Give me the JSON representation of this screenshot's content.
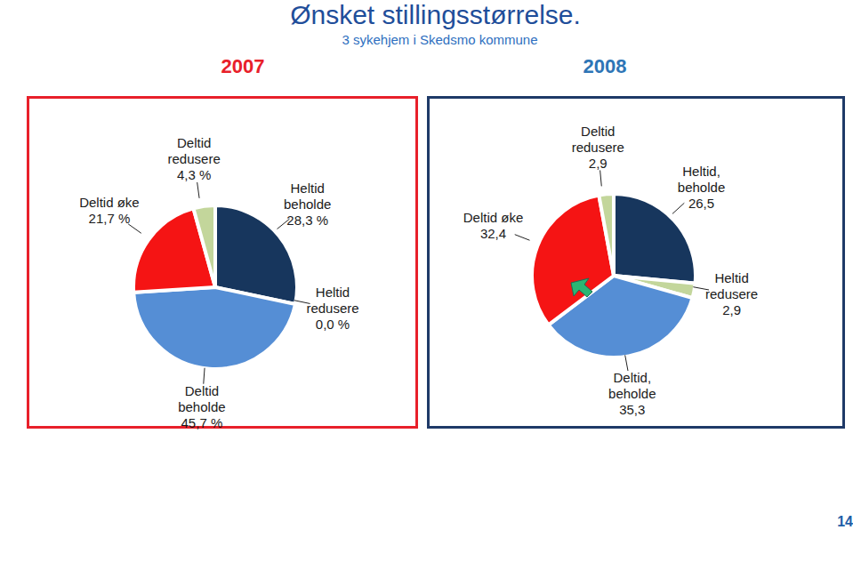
{
  "title": "Ønsket stillingsstørrelse.",
  "subtitle": "3 sykehjem i Skedsmo kommune",
  "page_number": 14,
  "chart_data": [
    {
      "type": "pie",
      "title": "2007",
      "categories": [
        "Heltid beholde",
        "Heltid redusere",
        "Deltid beholde",
        "Deltid øke",
        "Deltid redusere"
      ],
      "values": [
        28.3,
        0,
        45.7,
        21.7,
        4.3
      ],
      "value_labels": [
        "28,3 %",
        "0,0 %",
        "45,7 %",
        "21,7 %",
        "4,3 %"
      ],
      "colors": [
        "#17365d",
        "#c3d69b",
        "#558ed5",
        "#f51414",
        "#c3d69b"
      ],
      "data_labels": true
    },
    {
      "type": "pie",
      "title": "2008",
      "categories": [
        "Heltid, beholde",
        "Heltid redusere",
        "Deltid, beholde",
        "Deltid øke",
        "Deltid redusere"
      ],
      "values": [
        26.5,
        2.9,
        35.3,
        32.4,
        2.9
      ],
      "value_labels": [
        "26,5",
        "2,9",
        "35,3",
        "32,4",
        "2,9"
      ],
      "colors": [
        "#17365d",
        "#c3d69b",
        "#558ed5",
        "#f51414",
        "#c3d69b"
      ],
      "data_labels": true
    }
  ]
}
